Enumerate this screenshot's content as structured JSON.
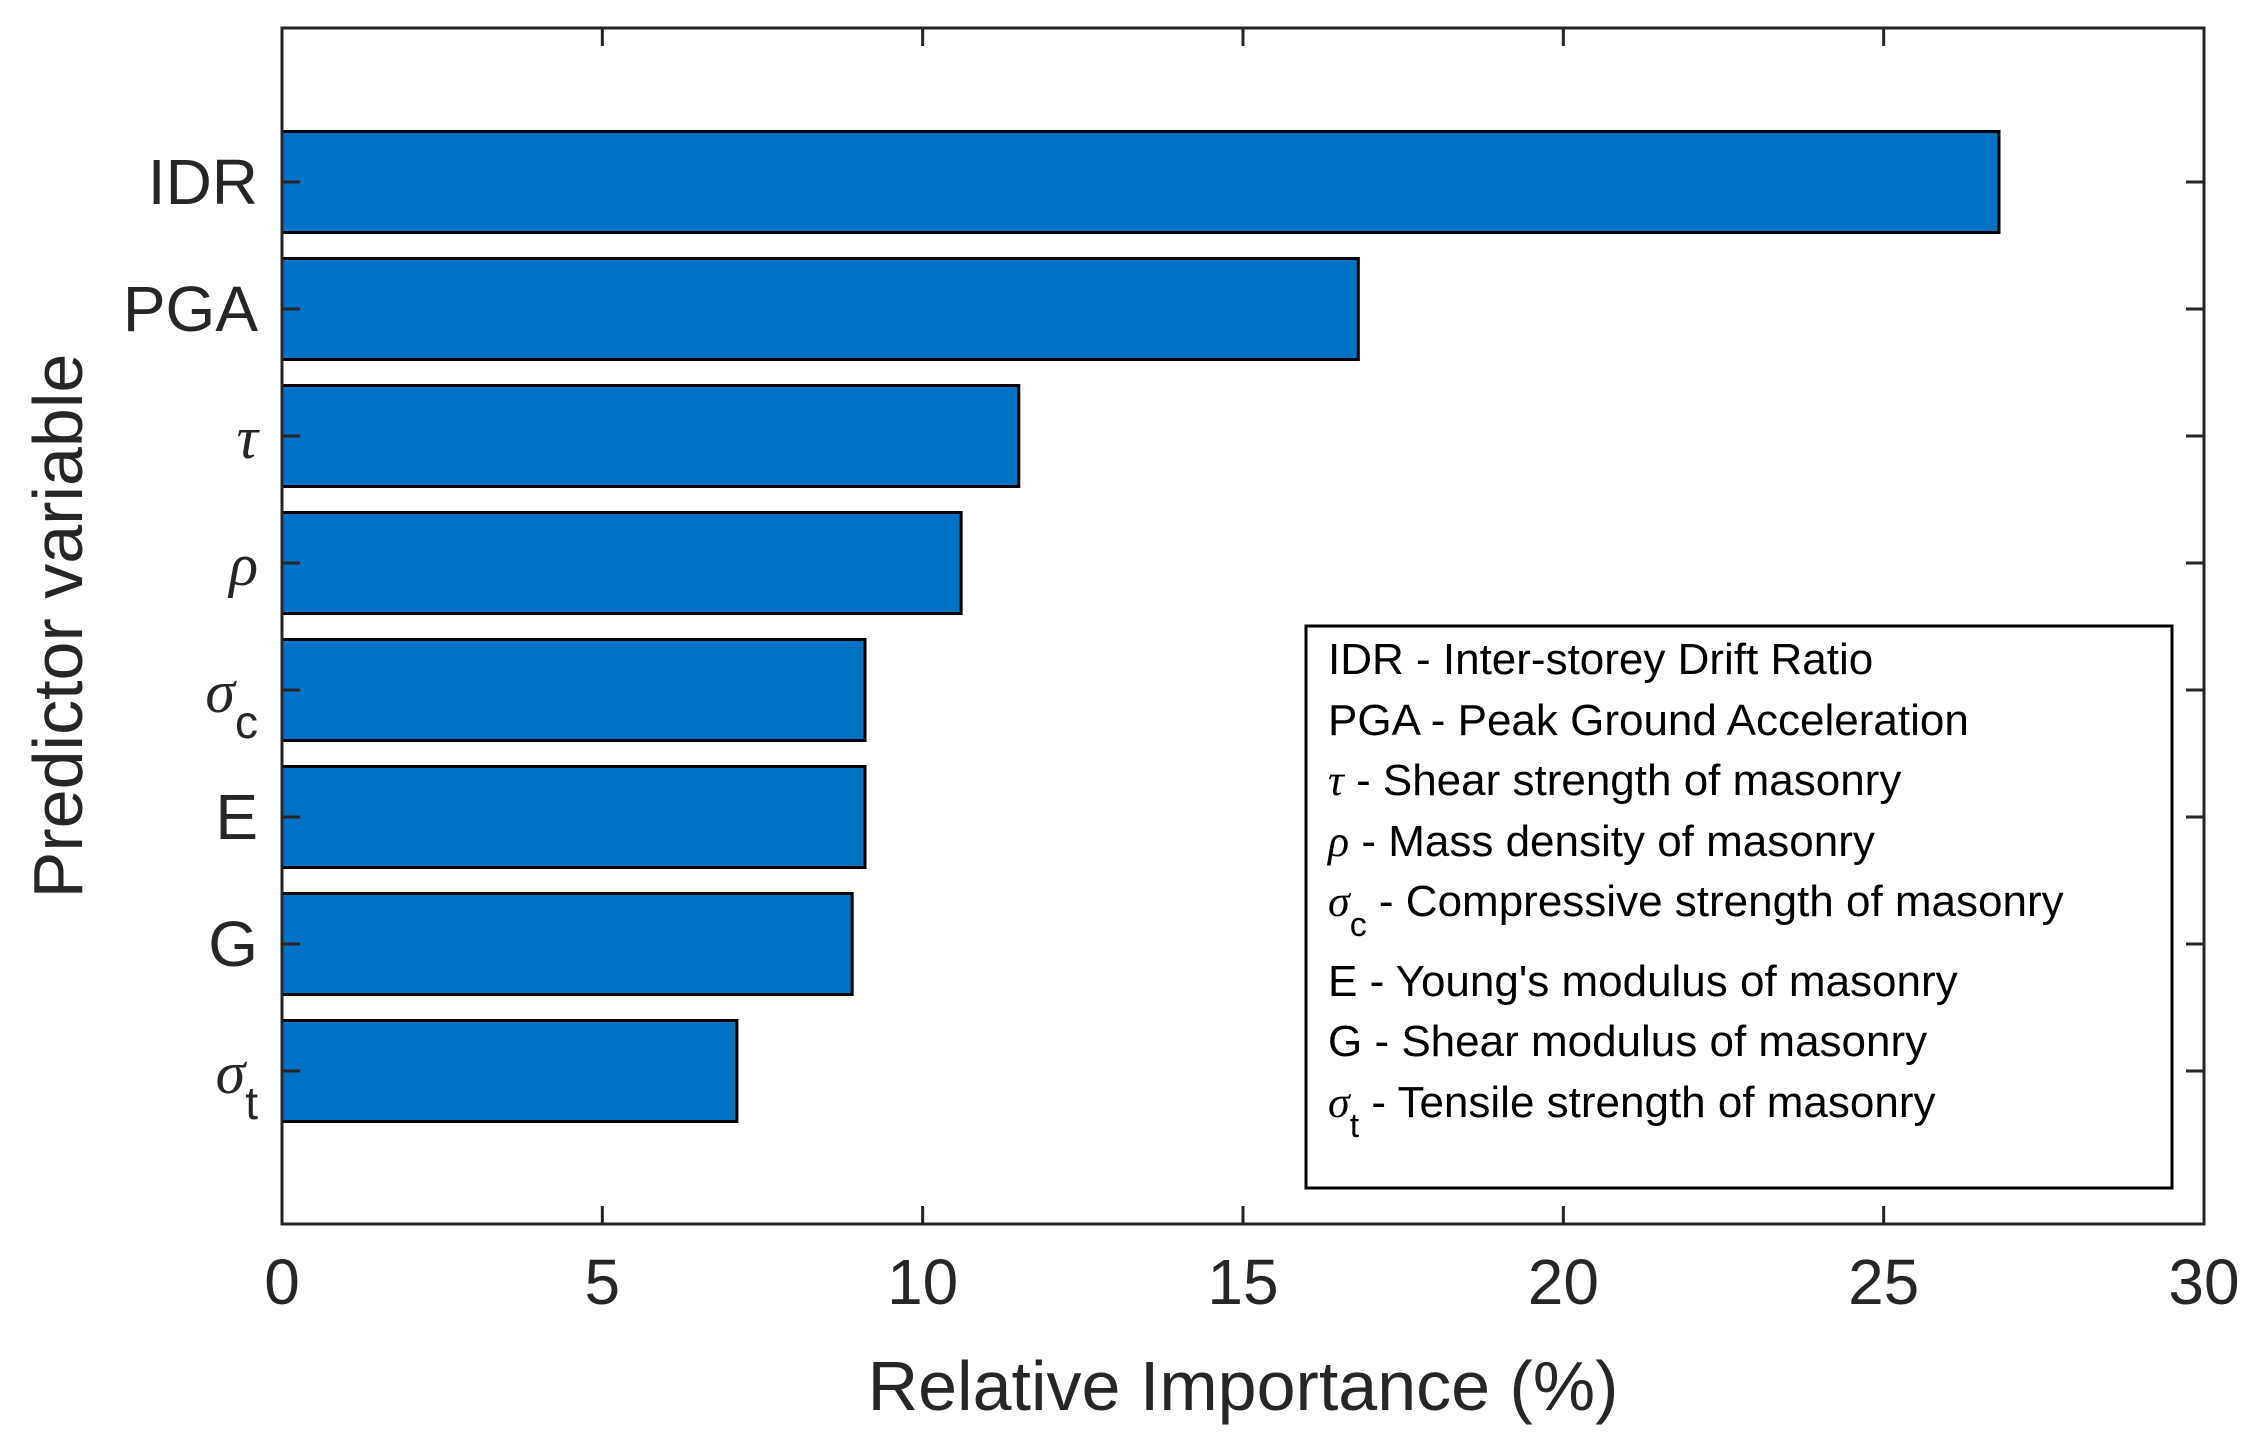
{
  "chart_data": {
    "type": "bar",
    "orientation": "horizontal",
    "xlabel": "Relative Importance (%)",
    "ylabel": "Predictor variable",
    "xlim": [
      0,
      30
    ],
    "xticks": [
      0,
      5,
      10,
      15,
      20,
      25,
      30
    ],
    "bar_color": "#0072C6",
    "categories": [
      {
        "id": "IDR",
        "main": "IDR",
        "sub": "",
        "italic": false
      },
      {
        "id": "PGA",
        "main": "PGA",
        "sub": "",
        "italic": false
      },
      {
        "id": "tau",
        "main": "τ",
        "sub": "",
        "italic": true
      },
      {
        "id": "rho",
        "main": "ρ",
        "sub": "",
        "italic": true
      },
      {
        "id": "sigma_c",
        "main": "σ",
        "sub": "c",
        "italic": true
      },
      {
        "id": "E",
        "main": "E",
        "sub": "",
        "italic": false
      },
      {
        "id": "G",
        "main": "G",
        "sub": "",
        "italic": false
      },
      {
        "id": "sigma_t",
        "main": "σ",
        "sub": "t",
        "italic": true
      }
    ],
    "values": [
      26.8,
      16.8,
      11.5,
      10.6,
      9.1,
      9.1,
      8.9,
      7.1
    ],
    "legend": {
      "placement": "lower-right",
      "entries": [
        {
          "symbol": "",
          "sub": "",
          "italic": false,
          "text": "IDR - Inter-storey Drift Ratio"
        },
        {
          "symbol": "",
          "sub": "",
          "italic": false,
          "text": "PGA - Peak Ground Acceleration"
        },
        {
          "symbol": "τ",
          "sub": "",
          "italic": true,
          "text": " - Shear strength of masonry"
        },
        {
          "symbol": "ρ",
          "sub": "",
          "italic": true,
          "text": " - Mass density of masonry"
        },
        {
          "symbol": "σ",
          "sub": "c",
          "italic": true,
          "text": " - Compressive strength of masonry"
        },
        {
          "symbol": "",
          "sub": "",
          "italic": false,
          "text": "E - Young's modulus of masonry"
        },
        {
          "symbol": "",
          "sub": "",
          "italic": false,
          "text": "G - Shear modulus of masonry"
        },
        {
          "symbol": "σ",
          "sub": "t",
          "italic": true,
          "text": " - Tensile strength of masonry"
        }
      ]
    }
  }
}
